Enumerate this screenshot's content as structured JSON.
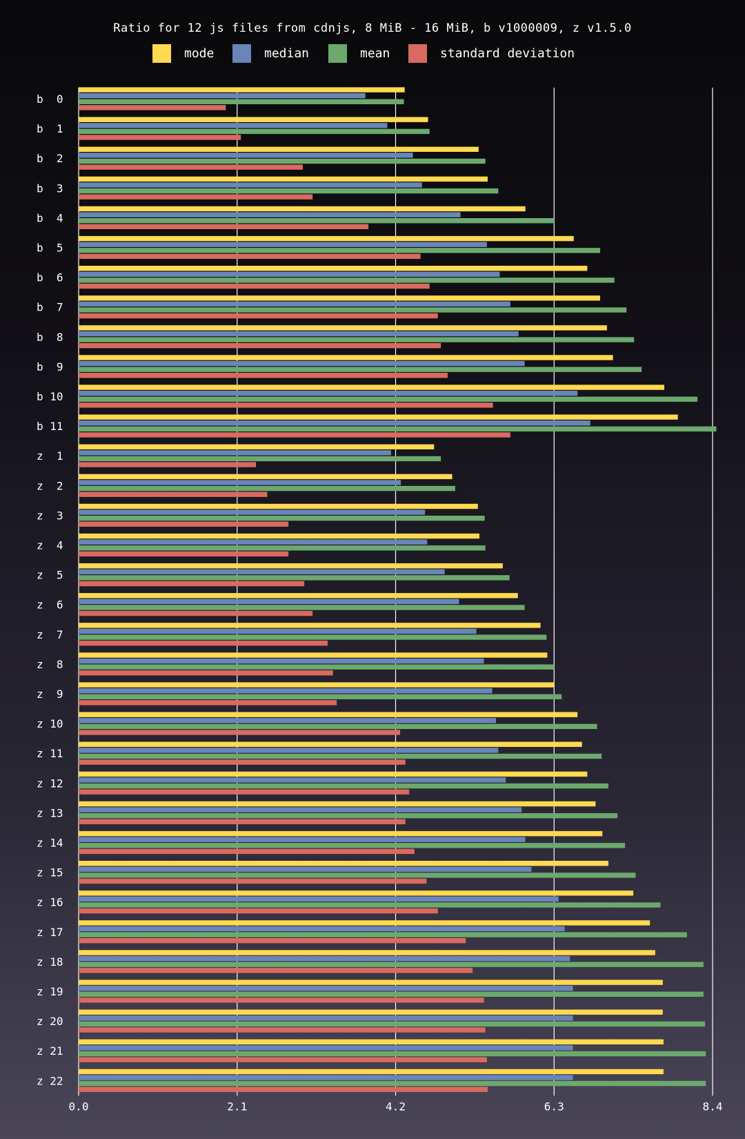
{
  "chart_data": {
    "type": "bar",
    "orientation": "horizontal",
    "title": "Ratio for 12 js files from cdnjs, 8 MiB - 16 MiB, b v1000009, z v1.5.0",
    "xlabel": "",
    "ylabel": "",
    "xlim": [
      0,
      8.4
    ],
    "xticks": [
      "0.0",
      "2.1",
      "4.2",
      "6.3",
      "8.4"
    ],
    "grid": "vertical",
    "legend_position": "top",
    "categories": [
      "b  0",
      "b  1",
      "b  2",
      "b  3",
      "b  4",
      "b  5",
      "b  6",
      "b  7",
      "b  8",
      "b  9",
      "b 10",
      "b 11",
      "z  1",
      "z  2",
      "z  3",
      "z  4",
      "z  5",
      "z  6",
      "z  7",
      "z  8",
      "z  9",
      "z 10",
      "z 11",
      "z 12",
      "z 13",
      "z 14",
      "z 15",
      "z 16",
      "z 17",
      "z 18",
      "z 19",
      "z 20",
      "z 21",
      "z 22"
    ],
    "series": [
      {
        "name": "mode",
        "color": "#ffd94f",
        "values": [
          4.32,
          4.63,
          5.3,
          5.42,
          5.92,
          6.56,
          6.74,
          6.91,
          7.0,
          7.08,
          7.76,
          7.94,
          4.71,
          4.95,
          5.29,
          5.31,
          5.62,
          5.82,
          6.12,
          6.21,
          6.3,
          6.61,
          6.67,
          6.74,
          6.85,
          6.94,
          7.02,
          7.35,
          7.57,
          7.64,
          7.74,
          7.74,
          7.75,
          7.75
        ]
      },
      {
        "name": "median",
        "color": "#6886b7",
        "values": [
          3.8,
          4.09,
          4.43,
          4.55,
          5.06,
          5.41,
          5.58,
          5.72,
          5.83,
          5.91,
          6.61,
          6.78,
          4.14,
          4.27,
          4.59,
          4.62,
          4.85,
          5.04,
          5.27,
          5.37,
          5.48,
          5.53,
          5.56,
          5.66,
          5.87,
          5.92,
          6.0,
          6.36,
          6.44,
          6.51,
          6.55,
          6.55,
          6.55,
          6.55
        ]
      },
      {
        "name": "mean",
        "color": "#6ca96d",
        "values": [
          4.31,
          4.65,
          5.39,
          5.56,
          6.3,
          6.91,
          7.1,
          7.26,
          7.36,
          7.46,
          8.2,
          8.45,
          4.8,
          4.99,
          5.38,
          5.39,
          5.71,
          5.91,
          6.2,
          6.3,
          6.4,
          6.87,
          6.93,
          7.02,
          7.14,
          7.24,
          7.38,
          7.71,
          8.06,
          8.28,
          8.28,
          8.3,
          8.31,
          8.31
        ]
      },
      {
        "name": "standard deviation",
        "color": "#d96a60",
        "values": [
          1.95,
          2.15,
          2.97,
          3.1,
          3.84,
          4.53,
          4.65,
          4.76,
          4.8,
          4.89,
          5.49,
          5.72,
          2.35,
          2.5,
          2.78,
          2.78,
          2.99,
          3.1,
          3.3,
          3.37,
          3.42,
          4.26,
          4.33,
          4.38,
          4.33,
          4.45,
          4.61,
          4.76,
          5.13,
          5.22,
          5.37,
          5.39,
          5.41,
          5.42
        ]
      }
    ]
  }
}
